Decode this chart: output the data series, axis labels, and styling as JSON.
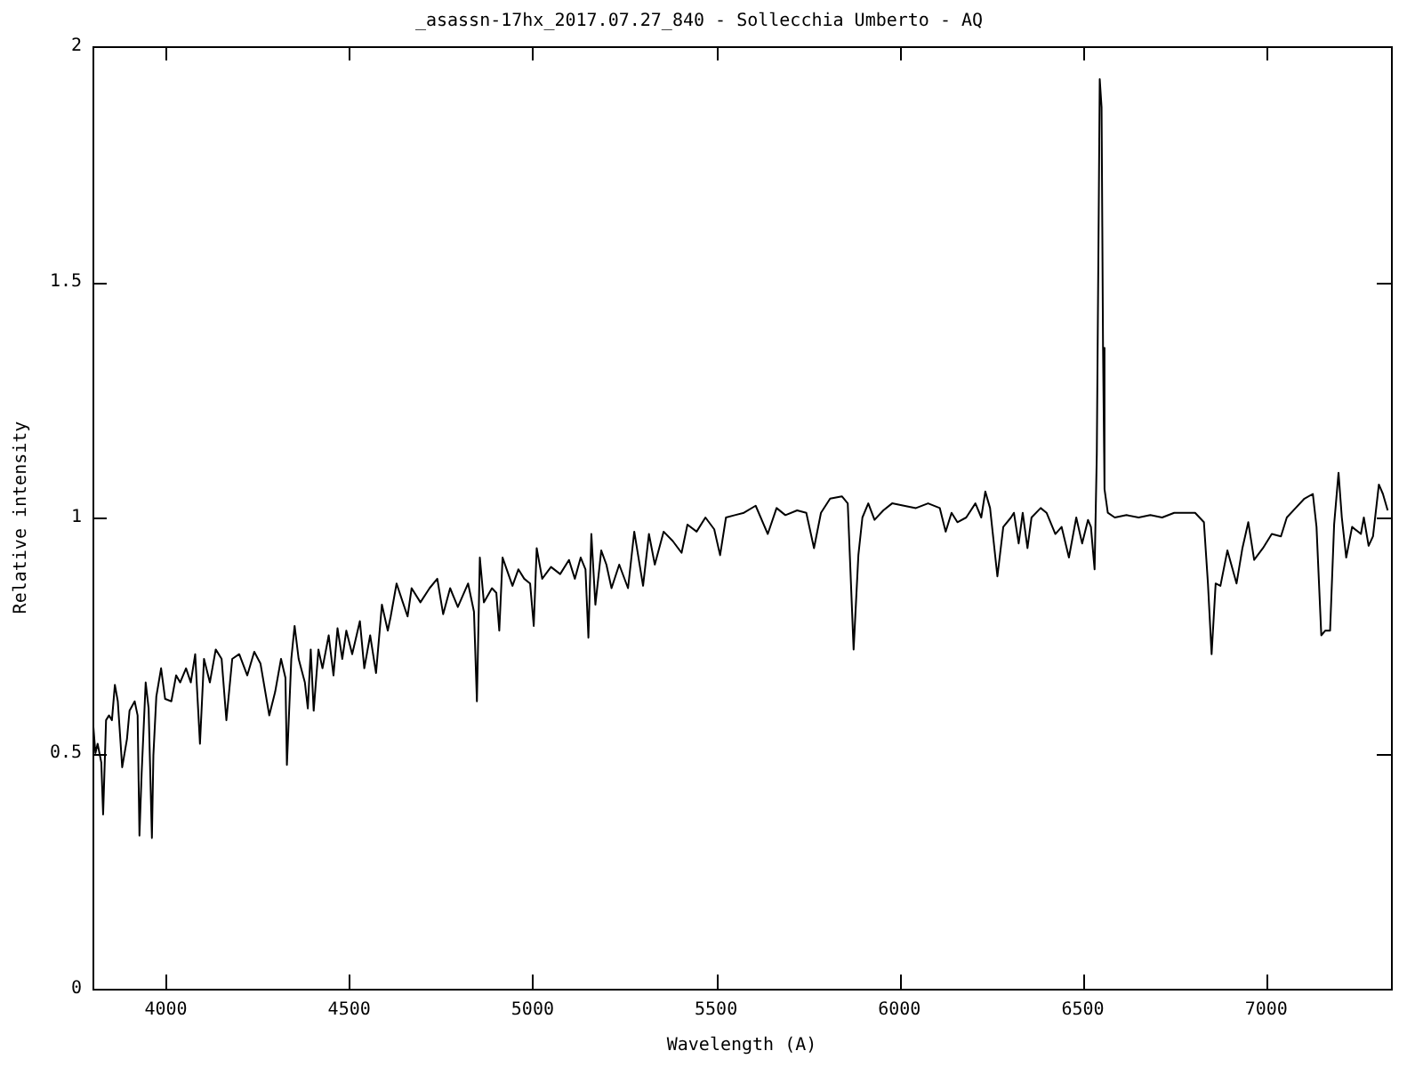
{
  "chart_data": {
    "type": "line",
    "title": "_asassn-17hx_2017.07.27_840 - Sollecchia Umberto - AQ",
    "xlabel": "Wavelength (A)",
    "ylabel": "Relative intensity",
    "xlim": [
      3800,
      7340
    ],
    "ylim": [
      0,
      2
    ],
    "xticks": [
      4000,
      4500,
      5000,
      5500,
      6000,
      6500,
      7000
    ],
    "yticks": [
      0,
      0.5,
      1,
      1.5,
      2
    ],
    "grid": false,
    "legend": false,
    "marker": "none",
    "line_style": "solid",
    "series": [
      {
        "color": "#000000",
        "x": [
          3801,
          3808,
          3814,
          3824,
          3829,
          3837,
          3845,
          3853,
          3861,
          3869,
          3881,
          3894,
          3901,
          3915,
          3923,
          3928,
          3934,
          3945,
          3953,
          3962,
          3966,
          3974,
          3987,
          3998,
          4015,
          4028,
          4039,
          4055,
          4068,
          4080,
          4093,
          4104,
          4120,
          4136,
          4152,
          4165,
          4181,
          4200,
          4222,
          4241,
          4258,
          4282,
          4298,
          4314,
          4326,
          4330,
          4342,
          4351,
          4362,
          4379,
          4387,
          4395,
          4403,
          4416,
          4427,
          4444,
          4457,
          4468,
          4481,
          4492,
          4508,
          4529,
          4541,
          4557,
          4573,
          4589,
          4605,
          4613,
          4629,
          4646,
          4659,
          4670,
          4694,
          4719,
          4740,
          4756,
          4775,
          4796,
          4824,
          4840,
          4848,
          4856,
          4867,
          4889,
          4901,
          4909,
          4918,
          4945,
          4961,
          4977,
          4993,
          5003,
          5011,
          5026,
          5050,
          5075,
          5099,
          5115,
          5131,
          5144,
          5152,
          5160,
          5171,
          5187,
          5201,
          5215,
          5236,
          5260,
          5277,
          5301,
          5317,
          5333,
          5357,
          5382,
          5406,
          5422,
          5447,
          5471,
          5495,
          5511,
          5527,
          5551,
          5576,
          5608,
          5641,
          5665,
          5689,
          5721,
          5746,
          5767,
          5786,
          5811,
          5843,
          5859,
          5875,
          5888,
          5899,
          5915,
          5932,
          5956,
          5980,
          6012,
          6045,
          6078,
          6110,
          6126,
          6142,
          6158,
          6182,
          6207,
          6223,
          6234,
          6247,
          6267,
          6283,
          6304,
          6312,
          6325,
          6336,
          6349,
          6360,
          6385,
          6401,
          6425,
          6442,
          6462,
          6482,
          6498,
          6514,
          6522,
          6532,
          6538,
          6543,
          6546,
          6551,
          6555,
          6559,
          6568,
          6587,
          6619,
          6652,
          6684,
          6716,
          6749,
          6781,
          6806,
          6830,
          6841,
          6851,
          6862,
          6875,
          6894,
          6919,
          6935,
          6951,
          6967,
          6991,
          7015,
          7040,
          7056,
          7080,
          7104,
          7127,
          7137,
          7150,
          7161,
          7174,
          7185,
          7197,
          7206,
          7218,
          7234,
          7258,
          7266,
          7279,
          7291,
          7307,
          7318,
          7331
        ],
        "values": [
          0.57,
          0.5,
          0.52,
          0.48,
          0.37,
          0.57,
          0.58,
          0.57,
          0.645,
          0.61,
          0.47,
          0.53,
          0.59,
          0.61,
          0.58,
          0.325,
          0.457,
          0.65,
          0.595,
          0.32,
          0.495,
          0.62,
          0.68,
          0.615,
          0.61,
          0.665,
          0.65,
          0.68,
          0.65,
          0.71,
          0.52,
          0.7,
          0.65,
          0.72,
          0.7,
          0.57,
          0.7,
          0.71,
          0.665,
          0.715,
          0.69,
          0.58,
          0.63,
          0.7,
          0.66,
          0.475,
          0.7,
          0.77,
          0.7,
          0.65,
          0.595,
          0.72,
          0.59,
          0.72,
          0.68,
          0.75,
          0.665,
          0.765,
          0.7,
          0.76,
          0.71,
          0.78,
          0.68,
          0.75,
          0.67,
          0.815,
          0.76,
          0.79,
          0.86,
          0.82,
          0.79,
          0.85,
          0.82,
          0.85,
          0.87,
          0.795,
          0.85,
          0.81,
          0.86,
          0.8,
          0.61,
          0.915,
          0.82,
          0.85,
          0.84,
          0.76,
          0.915,
          0.855,
          0.89,
          0.87,
          0.86,
          0.77,
          0.935,
          0.87,
          0.895,
          0.88,
          0.91,
          0.87,
          0.915,
          0.89,
          0.745,
          0.965,
          0.815,
          0.93,
          0.9,
          0.85,
          0.9,
          0.85,
          0.97,
          0.855,
          0.965,
          0.9,
          0.97,
          0.95,
          0.925,
          0.985,
          0.97,
          1.0,
          0.975,
          0.92,
          1.0,
          1.005,
          1.01,
          1.025,
          0.965,
          1.02,
          1.005,
          1.015,
          1.01,
          0.935,
          1.01,
          1.04,
          1.045,
          1.03,
          0.72,
          0.92,
          1.0,
          1.03,
          0.995,
          1.015,
          1.03,
          1.025,
          1.02,
          1.03,
          1.02,
          0.97,
          1.01,
          0.99,
          1.0,
          1.03,
          1.0,
          1.055,
          1.02,
          0.875,
          0.98,
          1.0,
          1.01,
          0.945,
          1.01,
          0.935,
          1.0,
          1.02,
          1.01,
          0.965,
          0.98,
          0.915,
          1.0,
          0.945,
          0.995,
          0.98,
          0.89,
          1.135,
          1.625,
          1.93,
          1.87,
          1.36,
          1.06,
          1.01,
          1.0,
          1.005,
          1.0,
          1.005,
          1.0,
          1.01,
          1.01,
          1.01,
          0.99,
          0.86,
          0.71,
          0.86,
          0.855,
          0.93,
          0.86,
          0.935,
          0.99,
          0.91,
          0.935,
          0.965,
          0.96,
          1.0,
          1.02,
          1.04,
          1.05,
          0.98,
          0.75,
          0.76,
          0.76,
          0.985,
          1.095,
          1.0,
          0.915,
          0.98,
          0.965,
          1.0,
          0.94,
          0.96,
          1.07,
          1.05,
          1.015
        ]
      }
    ]
  }
}
